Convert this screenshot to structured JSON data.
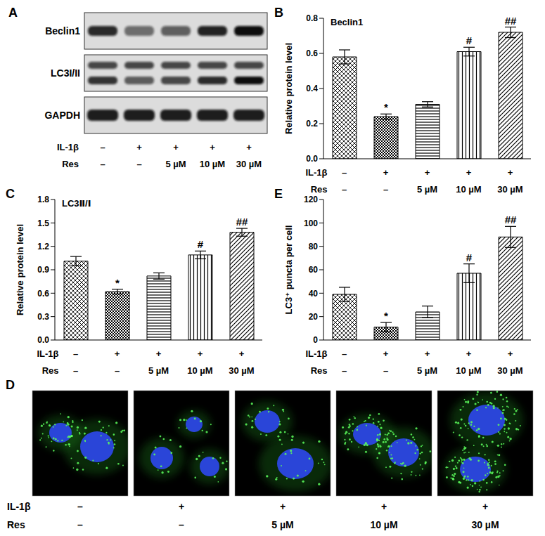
{
  "conditions": {
    "row_labels": [
      "IL-1β",
      "Res"
    ],
    "columns": [
      [
        "–",
        "–"
      ],
      [
        "+",
        "–"
      ],
      [
        "+",
        "5 µM"
      ],
      [
        "+",
        "10 µM"
      ],
      [
        "+",
        "30 µM"
      ]
    ]
  },
  "blot": {
    "panel": "A",
    "bands": [
      "Beclin1",
      "LC3I/II",
      "GAPDH"
    ]
  },
  "micrographs": {
    "panel": "D"
  },
  "chart_data": [
    {
      "panel": "B",
      "type": "bar",
      "title": "Beclin1",
      "y_label": "Relative protein level",
      "categories": [
        [
          "–",
          "–"
        ],
        [
          "+",
          "–"
        ],
        [
          "+",
          "5 µM"
        ],
        [
          "+",
          "10 µM"
        ],
        [
          "+",
          "30 µM"
        ]
      ],
      "category_rows": [
        "IL-1β",
        "Res"
      ],
      "values": [
        0.58,
        0.24,
        0.31,
        0.61,
        0.72
      ],
      "errors": [
        0.04,
        0.015,
        0.015,
        0.025,
        0.03
      ],
      "significance": [
        null,
        "*",
        null,
        "#",
        "##"
      ],
      "ylim": [
        0,
        0.8
      ],
      "yticks": [
        {
          "value": 0,
          "label": "0.0"
        },
        0.2,
        0.4,
        0.6,
        0.8
      ],
      "color": "#000000"
    },
    {
      "panel": "C",
      "type": "bar",
      "title": "LC3Ⅱ/Ⅰ",
      "y_label": "Relative protein level",
      "categories": [
        [
          "–",
          "–"
        ],
        [
          "+",
          "–"
        ],
        [
          "+",
          "5 µM"
        ],
        [
          "+",
          "10 µM"
        ],
        [
          "+",
          "30 µM"
        ]
      ],
      "category_rows": [
        "IL-1β",
        "Res"
      ],
      "values": [
        1.01,
        0.62,
        0.82,
        1.09,
        1.38
      ],
      "errors": [
        0.06,
        0.03,
        0.04,
        0.05,
        0.05
      ],
      "significance": [
        null,
        "*",
        null,
        "#",
        "##"
      ],
      "ylim": [
        0,
        1.8
      ],
      "yticks": [
        {
          "value": 0,
          "label": "0.0"
        },
        0.3,
        0.6,
        0.9,
        1.2,
        1.5,
        1.8
      ],
      "color": "#000000"
    },
    {
      "panel": "E",
      "type": "bar",
      "y_label": "LC3⁺ puncta per cell",
      "categories": [
        [
          "–",
          "–"
        ],
        [
          "+",
          "–"
        ],
        [
          "+",
          "5 µM"
        ],
        [
          "+",
          "10 µM"
        ],
        [
          "+",
          "30 µM"
        ]
      ],
      "category_rows": [
        "IL-1β",
        "Res"
      ],
      "values": [
        39,
        11,
        24,
        57,
        88
      ],
      "errors": [
        6,
        4,
        5,
        8,
        9
      ],
      "significance": [
        null,
        "*",
        null,
        "#",
        "##"
      ],
      "ylim": [
        0,
        120
      ],
      "yticks": [
        0,
        20,
        40,
        60,
        80,
        100,
        120
      ],
      "color": "#000000"
    }
  ]
}
